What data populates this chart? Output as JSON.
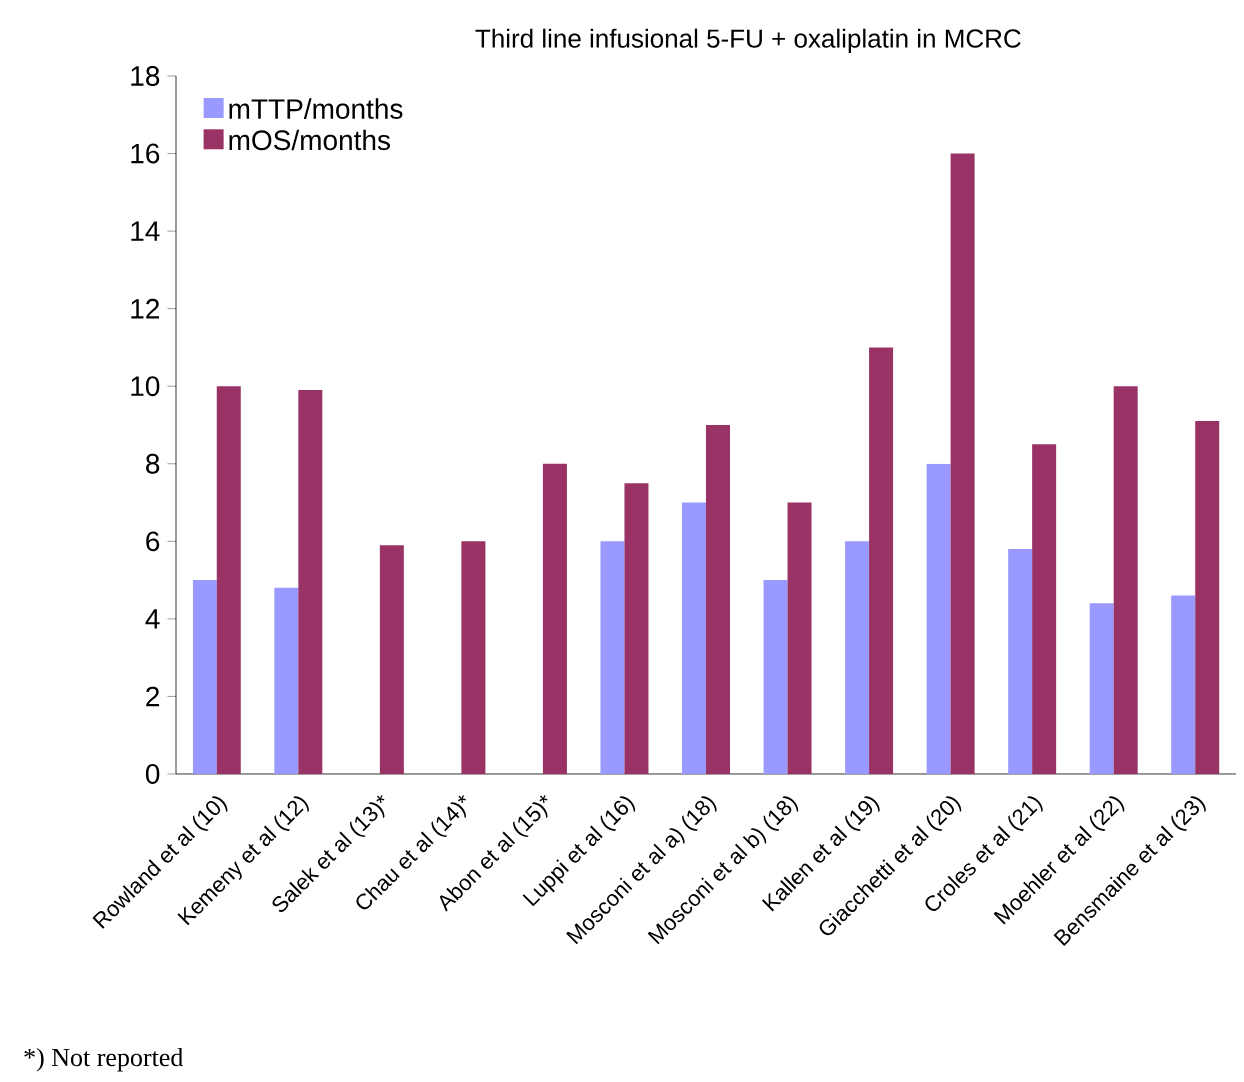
{
  "chart_data": {
    "type": "bar",
    "title": "Third line infusional 5-FU + oxaliplatin in MCRC",
    "categories": [
      "Rowland et al (10)",
      "Kemeny et al (12)",
      "Salek et al (13)*",
      "Chau et al (14)*",
      "Abon et al (15)*",
      "Luppi et al (16)",
      "Mosconi et al a) (18)",
      "Mosconi et al b) (18)",
      "Kallen et al (19)",
      "Giacchetti et al (20)",
      "Croles et al (21)",
      "Moehler et al (22)",
      "Bensmaine et al (23)"
    ],
    "series": [
      {
        "name": "mTTP/months",
        "color": "#9999ff",
        "values": [
          5,
          4.8,
          null,
          null,
          null,
          6,
          7,
          5,
          6,
          8,
          5.8,
          4.4,
          4.6
        ]
      },
      {
        "name": "mOS/months",
        "color": "#993366",
        "values": [
          10,
          9.9,
          5.9,
          6,
          8,
          7.5,
          9,
          7,
          11,
          16,
          8.5,
          10,
          9.1
        ]
      }
    ],
    "ylim": [
      0,
      18
    ],
    "yticks": [
      0,
      2,
      4,
      6,
      8,
      10,
      12,
      14,
      16,
      18
    ],
    "legend": "top left",
    "grid": false,
    "annotations": [
      "*) Not reported"
    ]
  }
}
